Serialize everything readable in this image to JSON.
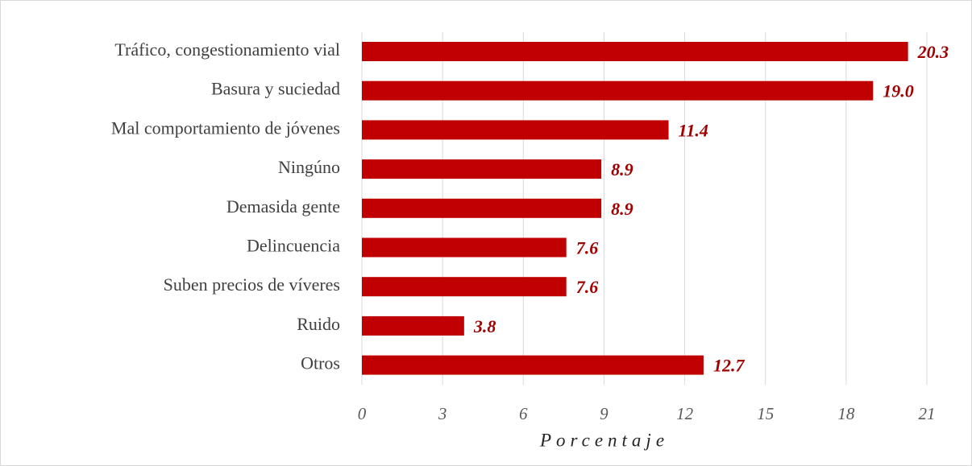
{
  "chart_data": {
    "type": "bar",
    "orientation": "horizontal",
    "categories": [
      "Tráfico, congestionamiento vial",
      "Basura y suciedad",
      "Mal comportamiento de jóvenes",
      "Ningúno",
      "Demasida gente",
      "Delincuencia",
      "Suben precios de víveres",
      "Ruido",
      "Otros"
    ],
    "values": [
      20.3,
      19.0,
      11.4,
      8.9,
      8.9,
      7.6,
      7.6,
      3.8,
      12.7
    ],
    "value_labels": [
      "20.3",
      "19.0",
      "11.4",
      "8.9",
      "8.9",
      "7.6",
      "7.6",
      "3.8",
      "12.7"
    ],
    "color": "#c00000",
    "xlim": [
      0,
      21
    ],
    "xticks": [
      0,
      3,
      6,
      9,
      12,
      15,
      18,
      21
    ],
    "x_label": "Porcentaje",
    "grid": true
  }
}
